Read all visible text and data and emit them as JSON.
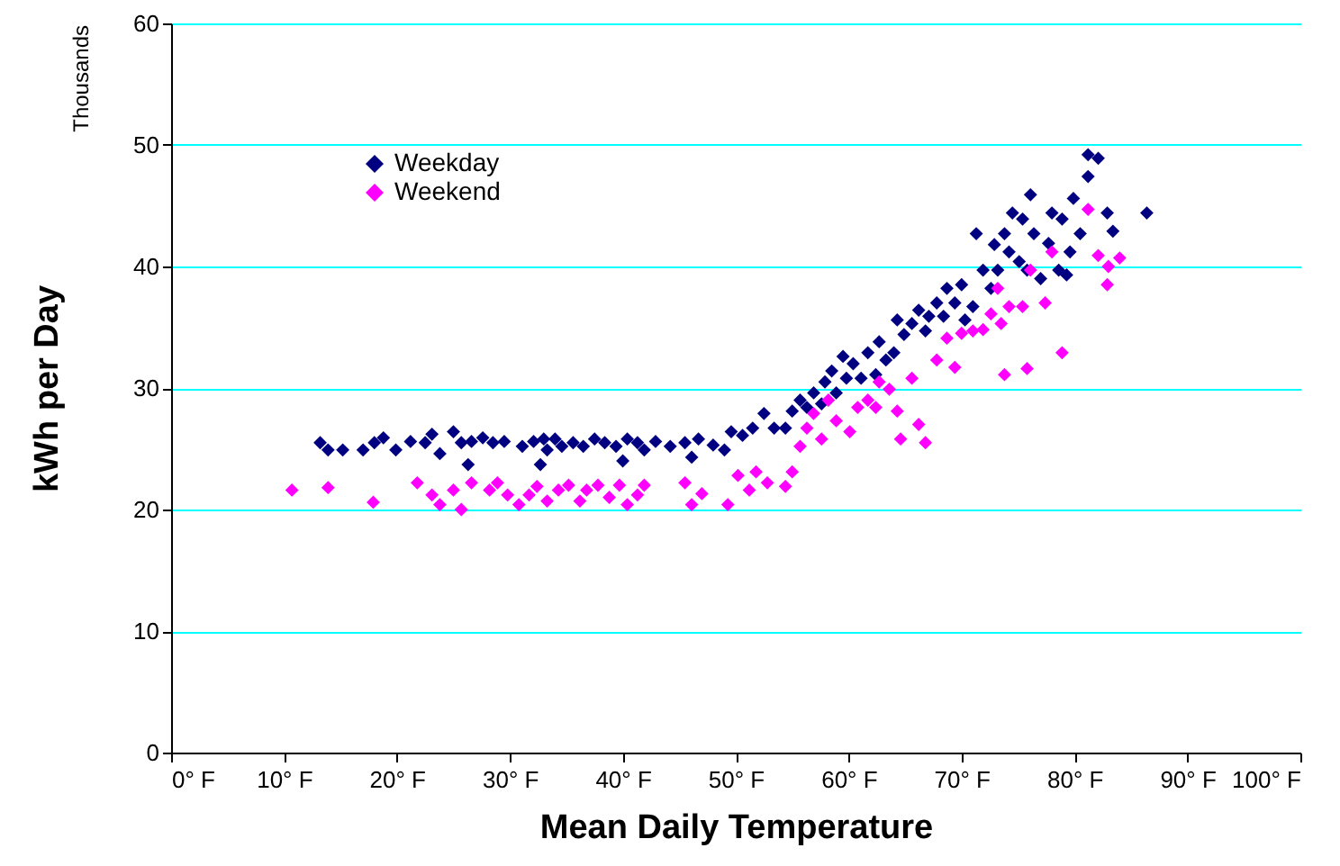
{
  "chart_data": {
    "type": "scatter",
    "xlabel": "Mean Daily Temperature",
    "ylabel": "kWh per Day",
    "annotations": [
      "Thousands"
    ],
    "xlim": [
      0,
      100
    ],
    "ylim": [
      0,
      60
    ],
    "xticks": [
      {
        "value": 0,
        "label": "0° F"
      },
      {
        "value": 10,
        "label": "10° F"
      },
      {
        "value": 20,
        "label": "20° F"
      },
      {
        "value": 30,
        "label": "30° F"
      },
      {
        "value": 40,
        "label": "40° F"
      },
      {
        "value": 50,
        "label": "50° F"
      },
      {
        "value": 60,
        "label": "60° F"
      },
      {
        "value": 70,
        "label": "70° F"
      },
      {
        "value": 80,
        "label": "80° F"
      },
      {
        "value": 90,
        "label": "90° F"
      },
      {
        "value": 100,
        "label": "100° F"
      }
    ],
    "yticks": [
      0,
      10,
      20,
      30,
      40,
      50,
      60
    ],
    "grid": "y",
    "legend": "top left",
    "marker": "diamond",
    "series": [
      {
        "name": "Weekday",
        "color": "#000080",
        "x": [
          13.2,
          13.9,
          15.2,
          17,
          18,
          18.8,
          19.9,
          21.2,
          22.5,
          23.1,
          23.8,
          25,
          25.7,
          26.6,
          27.6,
          28.5,
          29.5,
          31.1,
          32.1,
          33,
          33.3,
          34,
          34.6,
          35.6,
          36.5,
          37.5,
          38.4,
          39.4,
          40.4,
          41.3,
          41.9,
          42.9,
          44.2,
          45.5,
          46.7,
          48,
          49,
          49.6,
          50.6,
          51.5,
          52.5,
          53.4,
          54.4,
          26.3,
          32.7,
          40,
          46.1,
          55,
          55.7,
          56.3,
          56.9,
          57.6,
          57.9,
          58.5,
          58.9,
          59.5,
          59.8,
          60.4,
          61.1,
          61.7,
          62.4,
          62.7,
          63.3,
          64,
          64.3,
          64.9,
          65.6,
          66.2,
          66.8,
          67.1,
          67.8,
          68.4,
          68.7,
          69.4,
          70,
          70.3,
          71,
          71.3,
          71.9,
          72.6,
          72.9,
          73.2,
          73.8,
          74.2,
          74.5,
          75.1,
          75.4,
          75.8,
          76.1,
          76.4,
          77,
          77.7,
          78,
          78.6,
          78.9,
          79.6,
          79.9,
          80.5,
          81.2,
          82.1,
          81.2,
          82.9,
          83.4,
          86.4,
          79.3
        ],
        "values": [
          25.5,
          24.9,
          24.9,
          24.9,
          25.5,
          25.9,
          24.9,
          25.6,
          25.5,
          26.2,
          24.6,
          26.4,
          25.5,
          25.6,
          25.9,
          25.5,
          25.6,
          25.2,
          25.6,
          25.8,
          24.9,
          25.8,
          25.2,
          25.5,
          25.2,
          25.8,
          25.5,
          25.2,
          25.8,
          25.5,
          24.9,
          25.6,
          25.2,
          25.5,
          25.8,
          25.3,
          24.9,
          26.4,
          26.1,
          26.7,
          27.9,
          26.7,
          26.7,
          23.7,
          23.7,
          24,
          24.3,
          28.1,
          29,
          28.4,
          29.6,
          28.7,
          30.5,
          31.4,
          29.6,
          32.6,
          30.8,
          32,
          30.8,
          32.9,
          31.1,
          33.8,
          32.3,
          32.9,
          35.6,
          34.4,
          35.3,
          36.4,
          34.7,
          35.9,
          37,
          35.9,
          38.2,
          37,
          38.5,
          35.6,
          36.7,
          42.7,
          39.7,
          38.2,
          41.8,
          39.7,
          42.7,
          41.2,
          44.4,
          40.4,
          43.9,
          39.7,
          45.9,
          42.7,
          39,
          41.9,
          44.4,
          39.7,
          43.9,
          41.2,
          45.6,
          42.7,
          49.2,
          48.9,
          47.4,
          44.4,
          42.9,
          44.4,
          39.3
        ]
      },
      {
        "name": "Weekend",
        "color": "#ff00ff",
        "x": [
          10.7,
          13.9,
          17.9,
          21.8,
          23.1,
          23.8,
          25,
          25.7,
          26.6,
          28.2,
          28.9,
          29.8,
          30.8,
          31.7,
          32.4,
          33.3,
          34.3,
          35.2,
          36.2,
          36.8,
          37.8,
          38.8,
          39.7,
          40.4,
          41.3,
          41.9,
          45.5,
          46.1,
          47,
          49.3,
          50.2,
          51.2,
          51.8,
          52.8,
          54.4,
          55,
          55.7,
          56.3,
          56.9,
          57.6,
          58.2,
          58.9,
          60.1,
          60.8,
          61.7,
          62.4,
          62.7,
          63.6,
          64.3,
          64.6,
          65.6,
          66.2,
          66.8,
          67.8,
          68.7,
          69.4,
          70,
          71,
          71.9,
          72.6,
          73.2,
          73.5,
          73.8,
          74.2,
          75.4,
          75.8,
          76.1,
          77.4,
          78,
          78.9,
          81.2,
          82.1,
          82.9,
          83,
          84
        ],
        "values": [
          21.6,
          21.8,
          20.6,
          22.2,
          21.2,
          20.4,
          21.6,
          20,
          22.2,
          21.6,
          22.2,
          21.2,
          20.4,
          21.2,
          21.9,
          20.7,
          21.6,
          22,
          20.7,
          21.6,
          22,
          21,
          22,
          20.4,
          21.2,
          22,
          22.2,
          20.4,
          21.3,
          20.4,
          22.8,
          21.6,
          23.1,
          22.2,
          21.9,
          23.1,
          25.2,
          26.7,
          27.9,
          25.8,
          29,
          27.3,
          26.4,
          28.4,
          29,
          28.4,
          30.5,
          29.9,
          28.1,
          25.8,
          30.8,
          27,
          25.5,
          32.3,
          34.1,
          31.7,
          34.5,
          34.7,
          34.8,
          36.1,
          38.2,
          35.3,
          31.1,
          36.7,
          36.7,
          31.6,
          39.7,
          37,
          41.2,
          32.9,
          44.7,
          40.9,
          38.5,
          40,
          40.7
        ]
      }
    ]
  }
}
